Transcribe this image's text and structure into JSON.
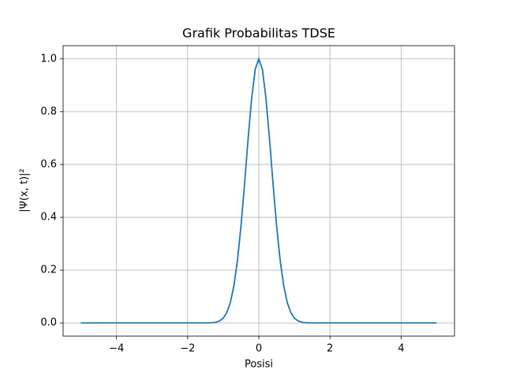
{
  "chart_data": {
    "type": "line",
    "title": "Grafik Probabilitas TDSE",
    "xlabel": "Posisi",
    "ylabel": "|Ψ(x, t)|²",
    "x": [
      -5,
      -4.5,
      -4,
      -3.5,
      -3,
      -2.5,
      -2,
      -1.5,
      -1.4,
      -1.3,
      -1.2,
      -1.1,
      -1.0,
      -0.9,
      -0.8,
      -0.7,
      -0.6,
      -0.5,
      -0.4,
      -0.3,
      -0.2,
      -0.1,
      0,
      0.1,
      0.2,
      0.3,
      0.4,
      0.5,
      0.6,
      0.7,
      0.8,
      0.9,
      1.0,
      1.1,
      1.2,
      1.3,
      1.4,
      1.5,
      2,
      2.5,
      3,
      3.5,
      4,
      4.5,
      5
    ],
    "series": [
      {
        "color": "#1f77b4",
        "values": [
          0,
          0,
          0,
          0,
          0,
          0,
          0,
          0,
          0,
          0.001,
          0.003,
          0.008,
          0.018,
          0.039,
          0.077,
          0.141,
          0.237,
          0.368,
          0.527,
          0.698,
          0.852,
          0.961,
          1,
          0.961,
          0.852,
          0.698,
          0.527,
          0.368,
          0.237,
          0.141,
          0.077,
          0.039,
          0.018,
          0.008,
          0.003,
          0.001,
          0,
          0,
          0,
          0,
          0,
          0,
          0,
          0,
          0
        ]
      }
    ],
    "xlim": [
      -5.5,
      5.5
    ],
    "ylim": [
      -0.05,
      1.05
    ],
    "xticks": [
      {
        "value": -4,
        "label": "−4"
      },
      {
        "value": -2,
        "label": "−2"
      },
      0,
      2,
      4
    ],
    "yticks": [
      {
        "value": 0,
        "label": "0.0"
      },
      {
        "value": 0.2,
        "label": "0.2"
      },
      {
        "value": 0.4,
        "label": "0.4"
      },
      {
        "value": 0.6,
        "label": "0.6"
      },
      {
        "value": 0.8,
        "label": "0.8"
      },
      {
        "value": 1,
        "label": "1.0"
      }
    ],
    "grid": true
  }
}
